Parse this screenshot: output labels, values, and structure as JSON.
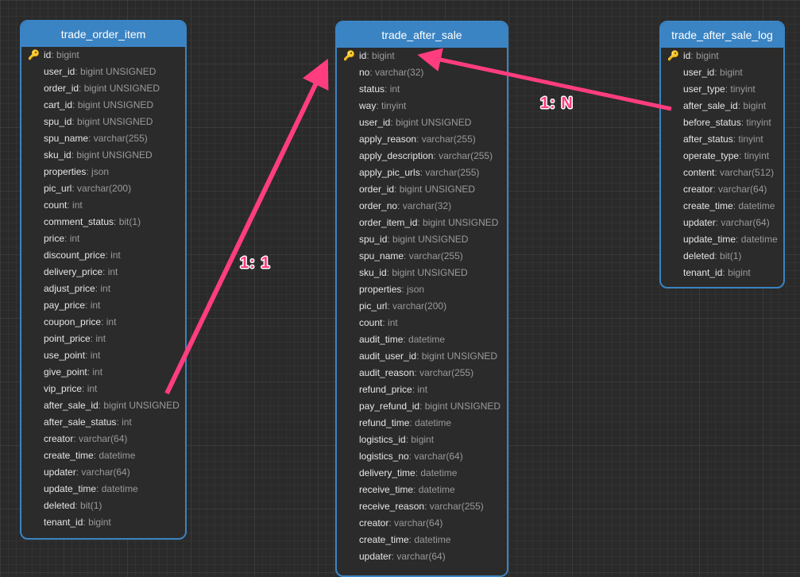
{
  "tables": [
    {
      "name": "trade_order_item",
      "fields": [
        [
          "id",
          "bigint"
        ],
        [
          "user_id",
          "bigint UNSIGNED"
        ],
        [
          "order_id",
          "bigint UNSIGNED"
        ],
        [
          "cart_id",
          "bigint UNSIGNED"
        ],
        [
          "spu_id",
          "bigint UNSIGNED"
        ],
        [
          "spu_name",
          "varchar(255)"
        ],
        [
          "sku_id",
          "bigint UNSIGNED"
        ],
        [
          "properties",
          "json"
        ],
        [
          "pic_url",
          "varchar(200)"
        ],
        [
          "count",
          "int"
        ],
        [
          "comment_status",
          "bit(1)"
        ],
        [
          "price",
          "int"
        ],
        [
          "discount_price",
          "int"
        ],
        [
          "delivery_price",
          "int"
        ],
        [
          "adjust_price",
          "int"
        ],
        [
          "pay_price",
          "int"
        ],
        [
          "coupon_price",
          "int"
        ],
        [
          "point_price",
          "int"
        ],
        [
          "use_point",
          "int"
        ],
        [
          "give_point",
          "int"
        ],
        [
          "vip_price",
          "int"
        ],
        [
          "after_sale_id",
          "bigint UNSIGNED"
        ],
        [
          "after_sale_status",
          "int"
        ],
        [
          "creator",
          "varchar(64)"
        ],
        [
          "create_time",
          "datetime"
        ],
        [
          "updater",
          "varchar(64)"
        ],
        [
          "update_time",
          "datetime"
        ],
        [
          "deleted",
          "bit(1)"
        ],
        [
          "tenant_id",
          "bigint"
        ]
      ]
    },
    {
      "name": "trade_after_sale",
      "fields": [
        [
          "id",
          "bigint"
        ],
        [
          "no",
          "varchar(32)"
        ],
        [
          "status",
          "int"
        ],
        [
          "way",
          "tinyint"
        ],
        [
          "user_id",
          "bigint UNSIGNED"
        ],
        [
          "apply_reason",
          "varchar(255)"
        ],
        [
          "apply_description",
          "varchar(255)"
        ],
        [
          "apply_pic_urls",
          "varchar(255)"
        ],
        [
          "order_id",
          "bigint UNSIGNED"
        ],
        [
          "order_no",
          "varchar(32)"
        ],
        [
          "order_item_id",
          "bigint UNSIGNED"
        ],
        [
          "spu_id",
          "bigint UNSIGNED"
        ],
        [
          "spu_name",
          "varchar(255)"
        ],
        [
          "sku_id",
          "bigint UNSIGNED"
        ],
        [
          "properties",
          "json"
        ],
        [
          "pic_url",
          "varchar(200)"
        ],
        [
          "count",
          "int"
        ],
        [
          "audit_time",
          "datetime"
        ],
        [
          "audit_user_id",
          "bigint UNSIGNED"
        ],
        [
          "audit_reason",
          "varchar(255)"
        ],
        [
          "refund_price",
          "int"
        ],
        [
          "pay_refund_id",
          "bigint UNSIGNED"
        ],
        [
          "refund_time",
          "datetime"
        ],
        [
          "logistics_id",
          "bigint"
        ],
        [
          "logistics_no",
          "varchar(64)"
        ],
        [
          "delivery_time",
          "datetime"
        ],
        [
          "receive_time",
          "datetime"
        ],
        [
          "receive_reason",
          "varchar(255)"
        ],
        [
          "creator",
          "varchar(64)"
        ],
        [
          "create_time",
          "datetime"
        ],
        [
          "updater",
          "varchar(64)"
        ]
      ]
    },
    {
      "name": "trade_after_sale_log",
      "fields": [
        [
          "id",
          "bigint"
        ],
        [
          "user_id",
          "bigint"
        ],
        [
          "user_type",
          "tinyint"
        ],
        [
          "after_sale_id",
          "bigint"
        ],
        [
          "before_status",
          "tinyint"
        ],
        [
          "after_status",
          "tinyint"
        ],
        [
          "operate_type",
          "tinyint"
        ],
        [
          "content",
          "varchar(512)"
        ],
        [
          "creator",
          "varchar(64)"
        ],
        [
          "create_time",
          "datetime"
        ],
        [
          "updater",
          "varchar(64)"
        ],
        [
          "update_time",
          "datetime"
        ],
        [
          "deleted",
          "bit(1)"
        ],
        [
          "tenant_id",
          "bigint"
        ]
      ]
    }
  ],
  "relations": [
    {
      "label": "1: 1"
    },
    {
      "label": "1: N"
    }
  ],
  "primary_key_icon": "key-icon",
  "colors": {
    "header": "#3b84c4",
    "relation": "#ff3d7f",
    "key": "#e8a317"
  }
}
